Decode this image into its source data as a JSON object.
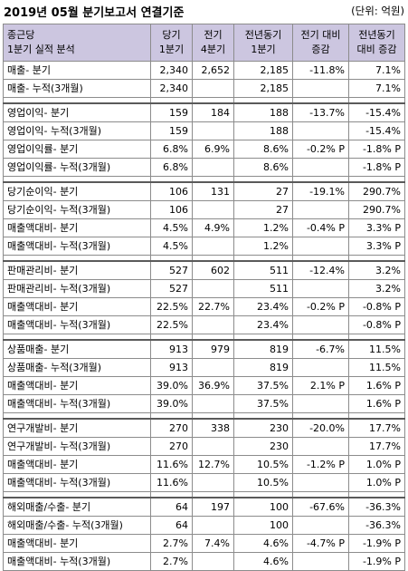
{
  "header": {
    "title": "2019년 05월 분기보고서 연결기준",
    "unit": "(단위: 억원)"
  },
  "table": {
    "columns": [
      [
        "종근당",
        "1분기 실적 분석"
      ],
      [
        "당기",
        "1분기"
      ],
      [
        "전기",
        "4분기"
      ],
      [
        "전년동기",
        "1분기"
      ],
      [
        "전기 대비",
        "증감"
      ],
      [
        "전년동기",
        "대비 증감"
      ]
    ],
    "groups": [
      [
        [
          "매출- 분기",
          "2,340",
          "2,652",
          "2,185",
          "-11.8%",
          "7.1%"
        ],
        [
          "매출- 누적(3개월)",
          "2,340",
          "",
          "2,185",
          "",
          "7.1%"
        ]
      ],
      [
        [
          "영업이익- 분기",
          "159",
          "184",
          "188",
          "-13.7%",
          "-15.4%"
        ],
        [
          "영업이익- 누적(3개월)",
          "159",
          "",
          "188",
          "",
          "-15.4%"
        ],
        [
          "영업이익률- 분기",
          "6.8%",
          "6.9%",
          "8.6%",
          "-0.2% P",
          "-1.8% P"
        ],
        [
          "영업이익률- 누적(3개월)",
          "6.8%",
          "",
          "8.6%",
          "",
          "-1.8% P"
        ]
      ],
      [
        [
          "당기순이익- 분기",
          "106",
          "131",
          "27",
          "-19.1%",
          "290.7%"
        ],
        [
          "당기순이익- 누적(3개월)",
          "106",
          "",
          "27",
          "",
          "290.7%"
        ],
        [
          "매출액대비- 분기",
          "4.5%",
          "4.9%",
          "1.2%",
          "-0.4% P",
          "3.3% P"
        ],
        [
          "매출액대비- 누적(3개월)",
          "4.5%",
          "",
          "1.2%",
          "",
          "3.3% P"
        ]
      ],
      [
        [
          "판매관리비- 분기",
          "527",
          "602",
          "511",
          "-12.4%",
          "3.2%"
        ],
        [
          "판매관리비- 누적(3개월)",
          "527",
          "",
          "511",
          "",
          "3.2%"
        ],
        [
          "매출액대비- 분기",
          "22.5%",
          "22.7%",
          "23.4%",
          "-0.2% P",
          "-0.8% P"
        ],
        [
          "매출액대비- 누적(3개월)",
          "22.5%",
          "",
          "23.4%",
          "",
          "-0.8% P"
        ]
      ],
      [
        [
          "상품매출- 분기",
          "913",
          "979",
          "819",
          "-6.7%",
          "11.5%"
        ],
        [
          "상품매출- 누적(3개월)",
          "913",
          "",
          "819",
          "",
          "11.5%"
        ],
        [
          "매출액대비- 분기",
          "39.0%",
          "36.9%",
          "37.5%",
          "2.1% P",
          "1.6% P"
        ],
        [
          "매출액대비- 누적(3개월)",
          "39.0%",
          "",
          "37.5%",
          "",
          "1.6% P"
        ]
      ],
      [
        [
          "연구개발비- 분기",
          "270",
          "338",
          "230",
          "-20.0%",
          "17.7%"
        ],
        [
          "연구개발비- 누적(3개월)",
          "270",
          "",
          "230",
          "",
          "17.7%"
        ],
        [
          "매출액대비- 분기",
          "11.6%",
          "12.7%",
          "10.5%",
          "-1.2% P",
          "1.0% P"
        ],
        [
          "매출액대비- 누적(3개월)",
          "11.6%",
          "",
          "10.5%",
          "",
          "1.0% P"
        ]
      ],
      [
        [
          "해외매출/수출- 분기",
          "64",
          "197",
          "100",
          "-67.6%",
          "-36.3%"
        ],
        [
          "해외매출/수출- 누적(3개월)",
          "64",
          "",
          "100",
          "",
          "-36.3%"
        ],
        [
          "매출액대비- 분기",
          "2.7%",
          "7.4%",
          "4.6%",
          "-4.7% P",
          "-1.9% P"
        ],
        [
          "매출액대비- 누적(3개월)",
          "2.7%",
          "",
          "4.6%",
          "",
          "-1.9% P"
        ]
      ]
    ]
  }
}
